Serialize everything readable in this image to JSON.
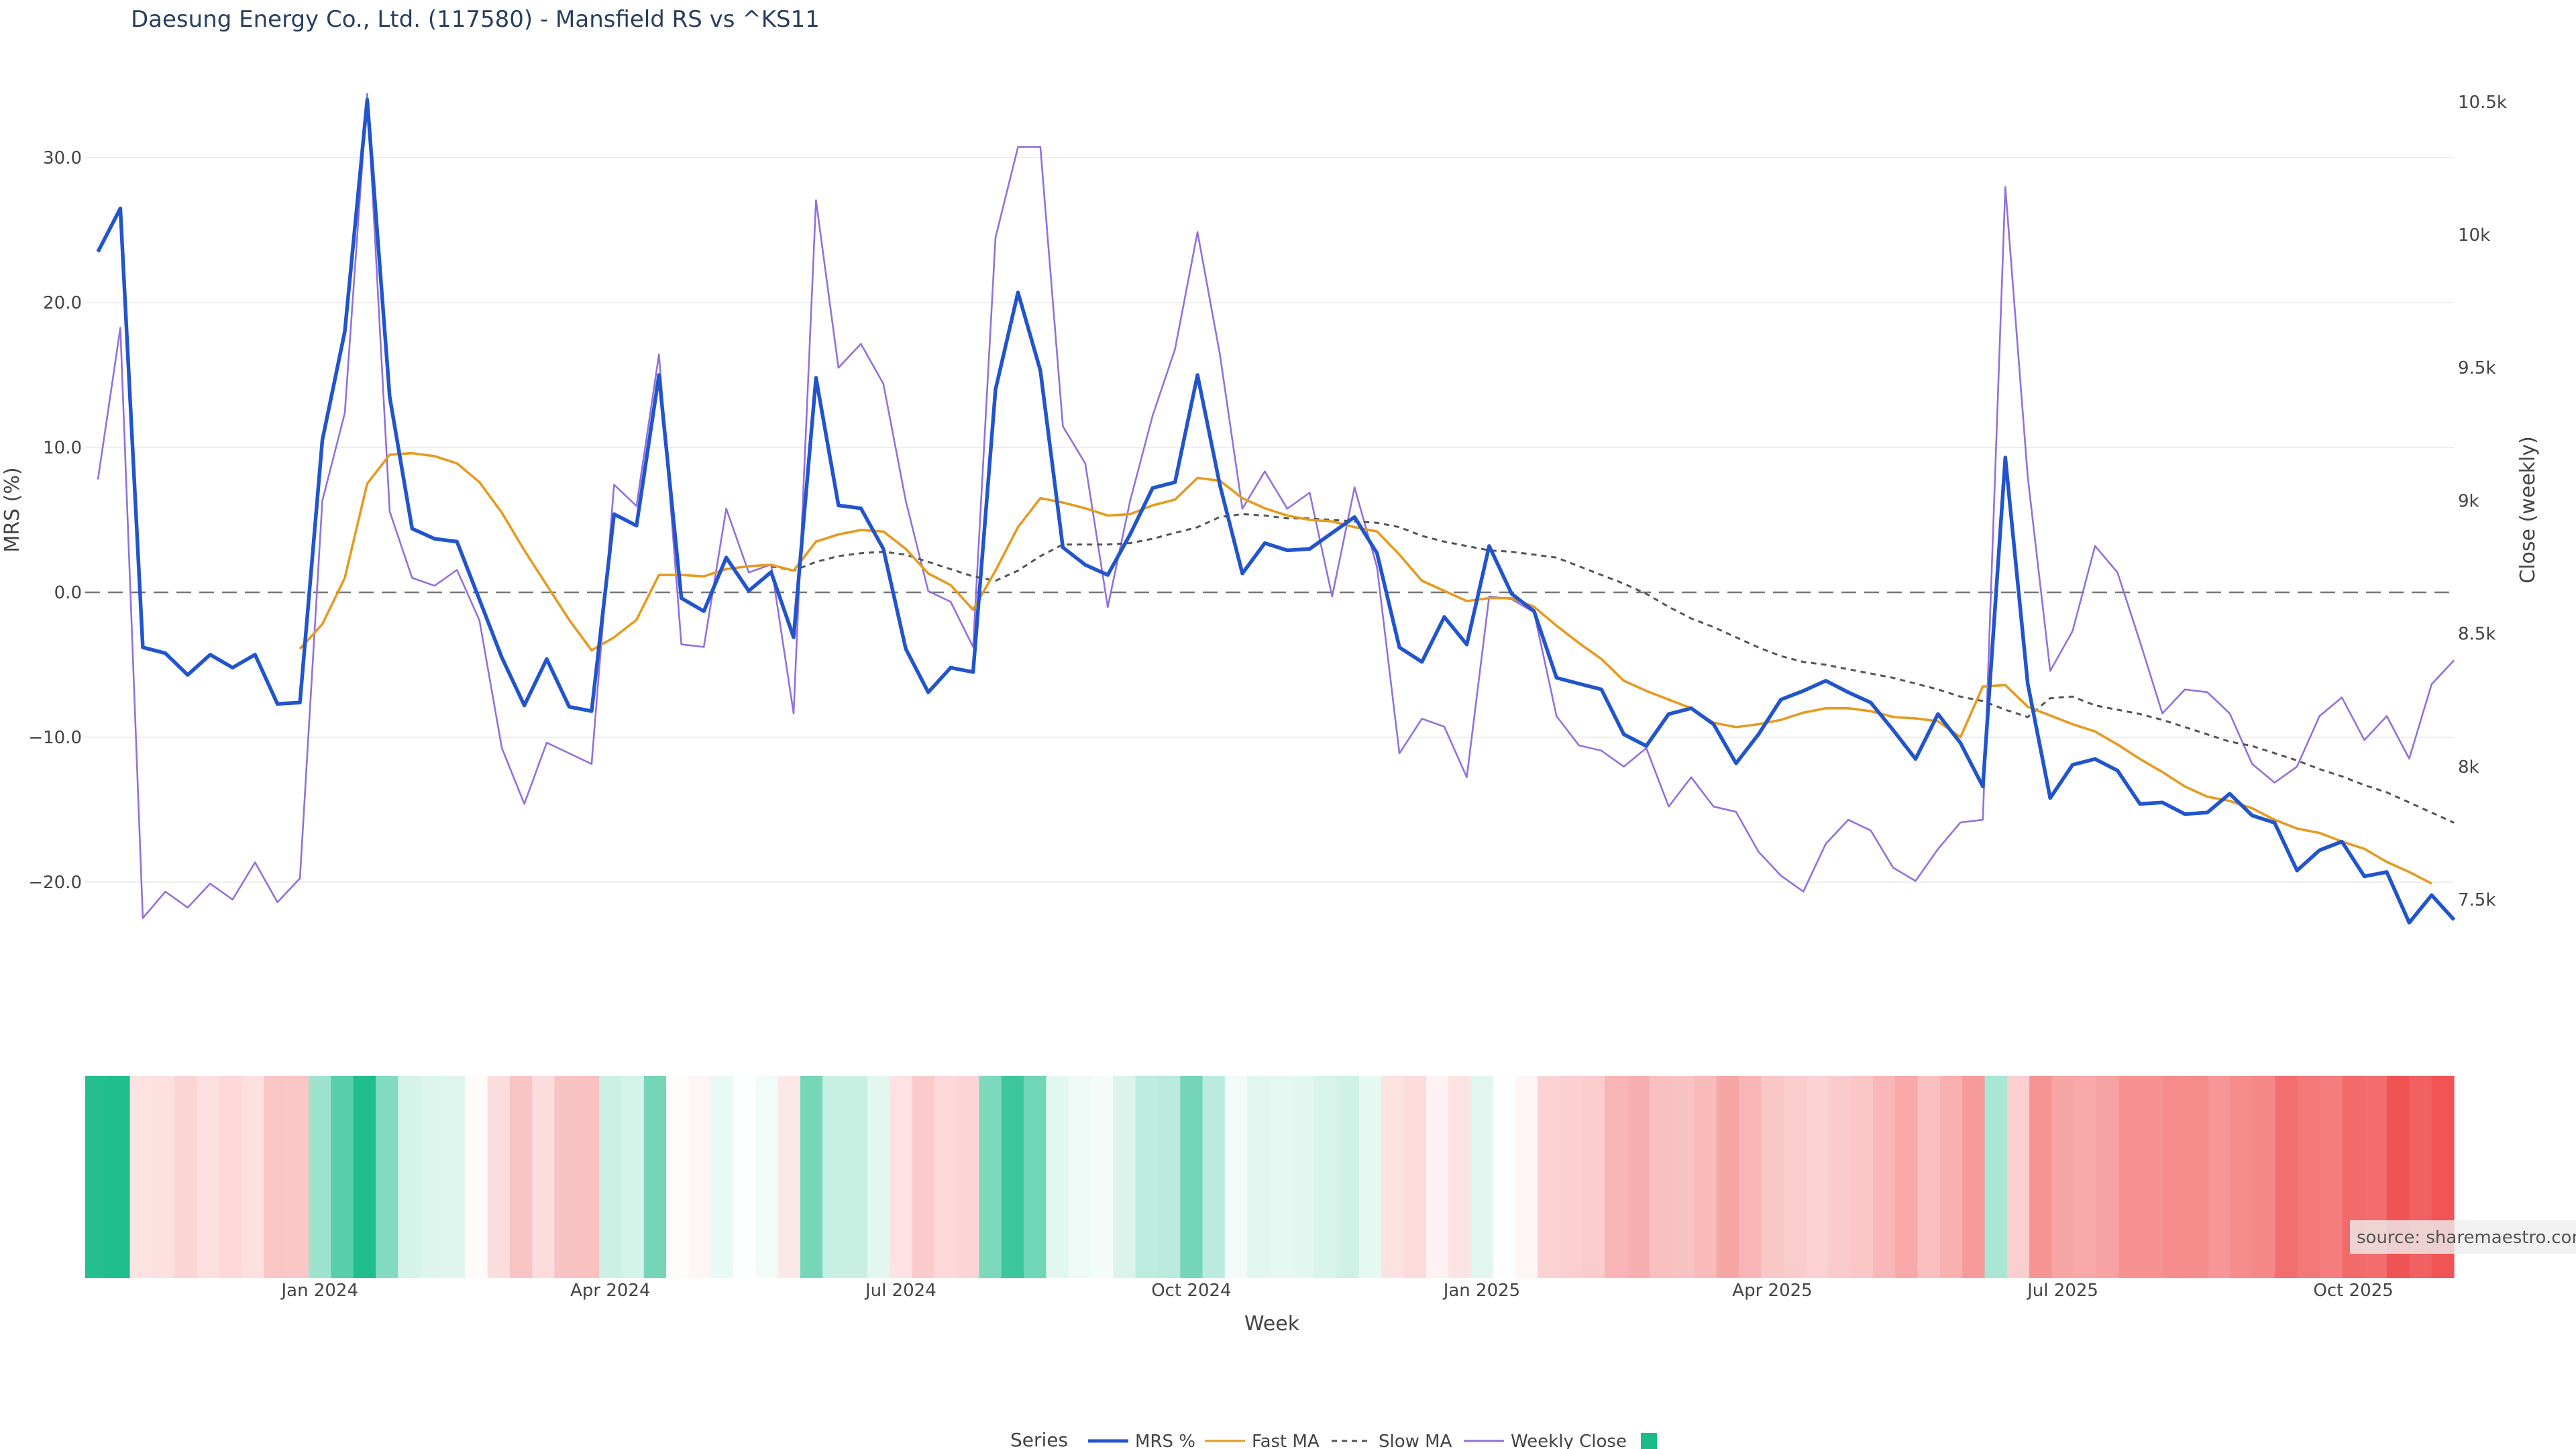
{
  "chart_data": {
    "type": "line",
    "title": "Daesung Energy Co., Ltd. (117580) - Mansfield RS vs ^KS11",
    "xlabel": "Week",
    "ylabel_left": "MRS (%)",
    "ylabel_right": "Close (weekly)",
    "ylim_left": [
      -24.5,
      35
    ],
    "ylim_right": [
      7350,
      10500
    ],
    "left_ticks": [
      30,
      20,
      10,
      0,
      -10,
      -20
    ],
    "left_tick_labels": [
      "30.0",
      "20.0",
      "10.0",
      "0.0",
      "−10.0",
      "−20.0"
    ],
    "right_ticks": [
      10500,
      10000,
      9500,
      9000,
      8500,
      8000,
      7500
    ],
    "right_tick_labels": [
      "10.5k",
      "10k",
      "9.5k",
      "9k",
      "8.5k",
      "8k",
      "7.5k"
    ],
    "x_ticks": [
      {
        "week": 10,
        "label": "Jan 2024"
      },
      {
        "week": 23,
        "label": "Apr 2024"
      },
      {
        "week": 36,
        "label": "Jul 2024"
      },
      {
        "week": 49,
        "label": "Oct 2024"
      },
      {
        "week": 62,
        "label": "Jan 2025"
      },
      {
        "week": 75,
        "label": "Apr 2025"
      },
      {
        "week": 88,
        "label": "Jul 2025"
      },
      {
        "week": 101,
        "label": "Oct 2025"
      }
    ],
    "weeks_count": 106,
    "series": [
      {
        "name": "MRS %",
        "color": "#2255cc",
        "axis": "left",
        "values": [
          23.5,
          26.5,
          -3.8,
          -4.2,
          -5.7,
          -4.3,
          -5.2,
          -4.3,
          -7.7,
          -7.6,
          10.5,
          18,
          34,
          13.5,
          4.4,
          3.7,
          3.5,
          -0.5,
          -4.5,
          -7.8,
          -4.6,
          -7.9,
          -8.2,
          5.4,
          4.6,
          15,
          -0.4,
          -1.3,
          2.4,
          0.1,
          1.4,
          -3.1,
          14.8,
          6,
          5.8,
          3,
          -3.9,
          -6.9,
          -5.2,
          -5.5,
          14,
          20.7,
          15.3,
          3.1,
          1.9,
          1.2,
          4,
          7.2,
          7.6,
          15,
          7.4,
          1.3,
          3.4,
          2.9,
          3,
          4.1,
          5.2,
          2.7,
          -3.8,
          -4.8,
          -1.7,
          -3.6,
          3.2,
          -0.1,
          -1.3,
          -5.9,
          -6.3,
          -6.7,
          -9.8,
          -10.6,
          -8.4,
          -8.0,
          -9.1,
          -11.8,
          -9.8,
          -7.4,
          -6.8,
          -6.1,
          -6.9,
          -7.6,
          -9.5,
          -11.5,
          -8.4,
          -10.4,
          -13.4,
          9.3,
          -6.3,
          -14.2,
          -11.9,
          -11.5,
          -12.3,
          -14.6,
          -14.5,
          -15.3,
          -15.2,
          -13.9,
          -15.4,
          -15.9,
          -19.2,
          -17.8,
          -17.2,
          -19.6,
          -19.3,
          -22.8,
          -20.9,
          -22.6
        ]
      },
      {
        "name": "Fast MA",
        "color": "#e69a1f",
        "axis": "left",
        "start_week": 9,
        "values": [
          -3.9,
          -2.2,
          1,
          7.5,
          9.5,
          9.6,
          9.4,
          8.9,
          7.6,
          5.5,
          2.9,
          0.5,
          -1.9,
          -4,
          -3.1,
          -1.9,
          1.2,
          1.2,
          1.1,
          1.6,
          1.8,
          1.9,
          1.5,
          3.5,
          4,
          4.3,
          4.2,
          3,
          1.3,
          0.5,
          -1.2,
          1.5,
          4.5,
          6.5,
          6.2,
          5.8,
          5.3,
          5.4,
          6,
          6.4,
          7.9,
          7.7,
          6.5,
          5.8,
          5.3,
          5,
          4.9,
          4.5,
          4.2,
          2.6,
          0.8,
          0.1,
          -0.6,
          -0.4,
          -0.4,
          -1,
          -2.3,
          -3.5,
          -4.6,
          -6.1,
          -6.8,
          -7.4,
          -8,
          -9,
          -9.3,
          -9.1,
          -8.8,
          -8.3,
          -8,
          -8,
          -8.2,
          -8.6,
          -8.7,
          -8.9,
          -10,
          -6.5,
          -6.4,
          -7.9,
          -8.5,
          -9.1,
          -9.6,
          -10.5,
          -11.5,
          -12.4,
          -13.4,
          -14.1,
          -14.4,
          -14.9,
          -15.7,
          -16.3,
          -16.6,
          -17.2,
          -17.7,
          -18.6,
          -19.3,
          -20.1
        ]
      },
      {
        "name": "Slow MA",
        "color": "#555555",
        "dash": true,
        "axis": "left",
        "start_week": 30,
        "values": [
          1.8,
          1.5,
          2.1,
          2.5,
          2.7,
          2.8,
          2.6,
          2.1,
          1.6,
          1.1,
          0.8,
          1.5,
          2.5,
          3.3,
          3.3,
          3.3,
          3.4,
          3.7,
          4.1,
          4.5,
          5.2,
          5.4,
          5.3,
          5.1,
          5.1,
          5,
          4.9,
          4.8,
          4.5,
          3.9,
          3.5,
          3.2,
          2.9,
          2.8,
          2.6,
          2.4,
          1.8,
          1.2,
          0.6,
          -0.1,
          -1,
          -1.8,
          -2.4,
          -3.1,
          -3.8,
          -4.4,
          -4.8,
          -5,
          -5.3,
          -5.6,
          -5.9,
          -6.3,
          -6.7,
          -7.2,
          -7.5,
          -8.1,
          -8.6,
          -7.3,
          -7.2,
          -7.8,
          -8.1,
          -8.4,
          -8.8,
          -9.3,
          -9.8,
          -10.3,
          -10.6,
          -11.1,
          -11.6,
          -12.2,
          -12.7,
          -13.3,
          -13.8,
          -14.5,
          -15.2,
          -15.9
        ]
      },
      {
        "name": "Weekly Close",
        "color": "#9370db",
        "axis": "right",
        "values": [
          9080,
          9650,
          7430,
          7530,
          7470,
          7560,
          7500,
          7640,
          7490,
          7580,
          9000,
          9330,
          10530,
          8960,
          8710,
          8680,
          8740,
          8550,
          8070,
          7860,
          8090,
          8050,
          8010,
          9060,
          8980,
          9550,
          8460,
          8450,
          8970,
          8730,
          8760,
          8200,
          10130,
          9500,
          9590,
          9440,
          9000,
          8660,
          8620,
          8450,
          9990,
          10330,
          10330,
          9280,
          9140,
          8600,
          9000,
          9320,
          9570,
          10010,
          9550,
          8970,
          9110,
          8970,
          9030,
          8640,
          9050,
          8750,
          8050,
          8180,
          8150,
          7960,
          8640,
          8630,
          8580,
          8190,
          8080,
          8060,
          8000,
          8070,
          7850,
          7960,
          7850,
          7830,
          7680,
          7590,
          7530,
          7710,
          7800,
          7760,
          7620,
          7570,
          7690,
          7790,
          7800,
          10180,
          9090,
          8360,
          8510,
          8830,
          8730,
          8470,
          8200,
          8290,
          8280,
          8200,
          8010,
          7940,
          8000,
          8190,
          8260,
          8100,
          8190,
          8030,
          8310,
          8400
        ]
      }
    ],
    "heatmap": {
      "colorscale": {
        "neg_max": "#ef4444",
        "pos_max": "#1abc89",
        "mid": "#ffffff"
      },
      "range": [
        -24,
        24
      ]
    },
    "legend": {
      "title": "Series",
      "items": [
        "MRS %",
        "Fast MA",
        "Slow MA",
        "Weekly Close"
      ],
      "placement": "bottom-center"
    },
    "source_label": "source: sharemaestro.com"
  }
}
